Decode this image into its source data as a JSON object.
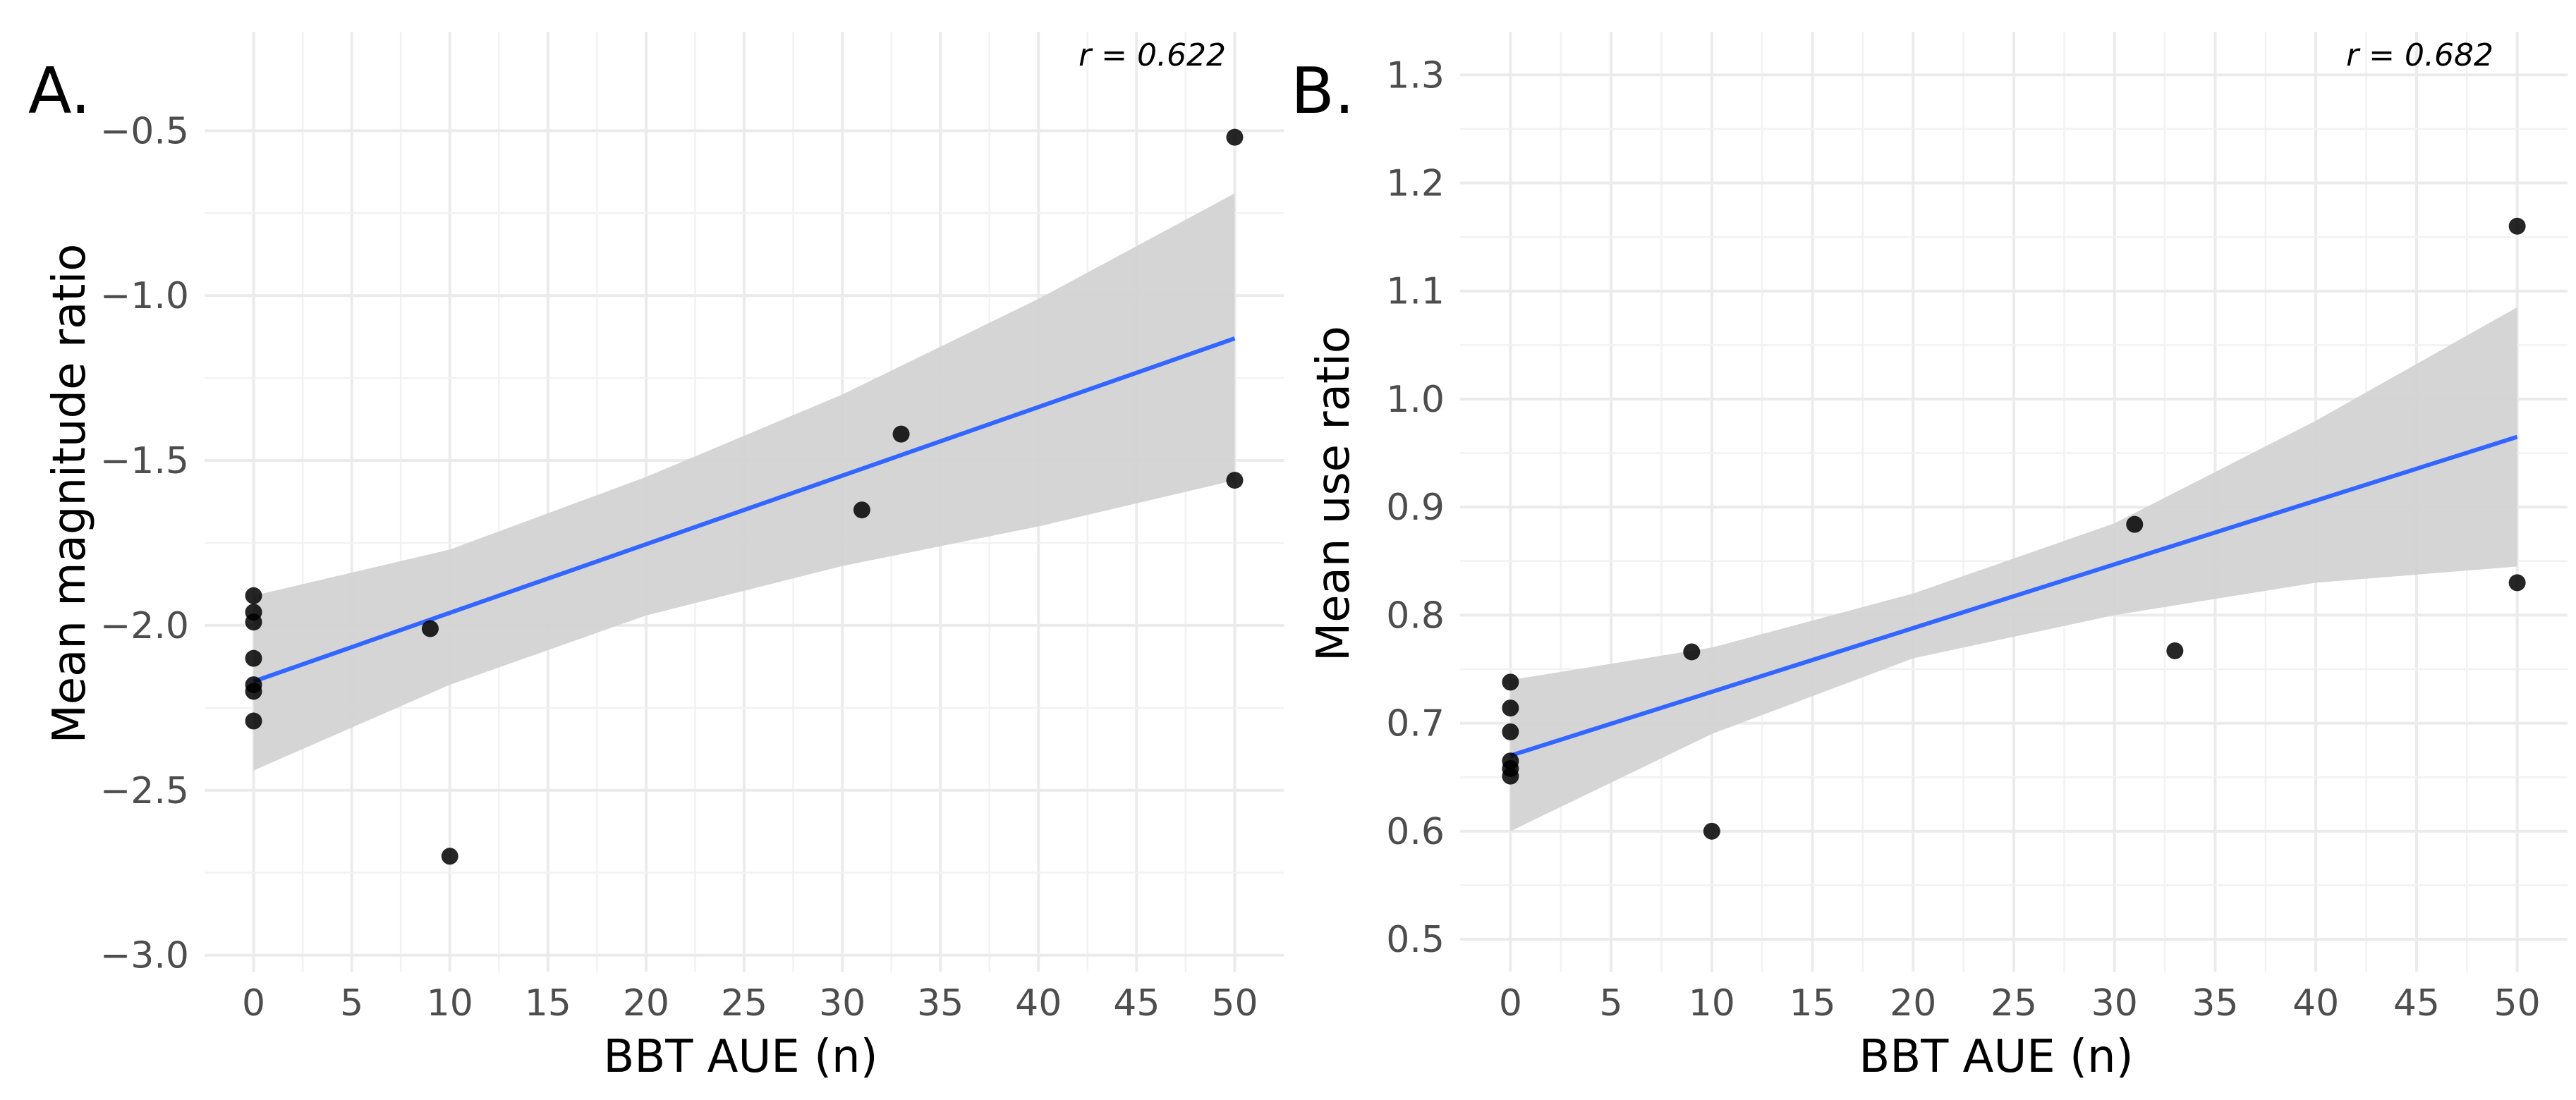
{
  "chart_data": [
    {
      "type": "scatter",
      "panel_label": "A.",
      "title": "",
      "xlabel": "BBT AUE (n)",
      "ylabel": "Mean magnitude ratio",
      "annotation": "r = 0.622",
      "xlim": [
        -2.5,
        52.5
      ],
      "ylim": [
        -3.05,
        -0.2
      ],
      "xticks": [
        0,
        5,
        10,
        15,
        20,
        25,
        30,
        35,
        40,
        45,
        50
      ],
      "xtick_labels": [
        "0",
        "5",
        "10",
        "15",
        "20",
        "25",
        "30",
        "35",
        "40",
        "45",
        "50"
      ],
      "yticks": [
        -3.0,
        -2.5,
        -2.0,
        -1.5,
        -1.0,
        -0.5
      ],
      "ytick_labels": [
        "−3.0",
        "−2.5",
        "−2.0",
        "−1.5",
        "−1.0",
        "−0.5"
      ],
      "grid": true,
      "points": [
        {
          "x": 0,
          "y": -1.91
        },
        {
          "x": 0,
          "y": -1.96
        },
        {
          "x": 0,
          "y": -1.99
        },
        {
          "x": 0,
          "y": -2.1
        },
        {
          "x": 0,
          "y": -2.18
        },
        {
          "x": 0,
          "y": -2.2
        },
        {
          "x": 0,
          "y": -2.29
        },
        {
          "x": 9,
          "y": -2.01
        },
        {
          "x": 10,
          "y": -2.7
        },
        {
          "x": 31,
          "y": -1.65
        },
        {
          "x": 33,
          "y": -1.42
        },
        {
          "x": 50,
          "y": -0.52
        },
        {
          "x": 50,
          "y": -1.56
        }
      ],
      "fit_line": {
        "x": [
          0,
          50
        ],
        "y": [
          -2.17,
          -1.13
        ],
        "color": "#3366FF"
      },
      "confidence_band": {
        "x": [
          0,
          10,
          20,
          30,
          40,
          50
        ],
        "upper": [
          -1.91,
          -1.77,
          -1.55,
          -1.3,
          -1.01,
          -0.69
        ],
        "lower": [
          -2.44,
          -2.18,
          -1.97,
          -1.82,
          -1.7,
          -1.56
        ],
        "color": "#d3d3d3"
      }
    },
    {
      "type": "scatter",
      "panel_label": "B.",
      "title": "",
      "xlabel": "BBT AUE (n)",
      "ylabel": "Mean use ratio",
      "annotation": "r = 0.682",
      "xlim": [
        -2.5,
        52.5
      ],
      "ylim": [
        0.47,
        1.34
      ],
      "xticks": [
        0,
        5,
        10,
        15,
        20,
        25,
        30,
        35,
        40,
        45,
        50
      ],
      "xtick_labels": [
        "0",
        "5",
        "10",
        "15",
        "20",
        "25",
        "30",
        "35",
        "40",
        "45",
        "50"
      ],
      "yticks": [
        0.5,
        0.6,
        0.7,
        0.8,
        0.9,
        1.0,
        1.1,
        1.2,
        1.3
      ],
      "ytick_labels": [
        "0.5",
        "0.6",
        "0.7",
        "0.8",
        "0.9",
        "1.0",
        "1.1",
        "1.2",
        "1.3"
      ],
      "grid": true,
      "points": [
        {
          "x": 0,
          "y": 0.738
        },
        {
          "x": 0,
          "y": 0.714
        },
        {
          "x": 0,
          "y": 0.692
        },
        {
          "x": 0,
          "y": 0.665
        },
        {
          "x": 0,
          "y": 0.658
        },
        {
          "x": 0,
          "y": 0.651
        },
        {
          "x": 9,
          "y": 0.766
        },
        {
          "x": 10,
          "y": 0.6
        },
        {
          "x": 31,
          "y": 0.884
        },
        {
          "x": 33,
          "y": 0.767
        },
        {
          "x": 50,
          "y": 1.16
        },
        {
          "x": 50,
          "y": 0.83
        }
      ],
      "fit_line": {
        "x": [
          0,
          50
        ],
        "y": [
          0.67,
          0.965
        ],
        "color": "#3366FF"
      },
      "confidence_band": {
        "x": [
          0,
          10,
          20,
          30,
          40,
          50
        ],
        "upper": [
          0.74,
          0.77,
          0.82,
          0.885,
          0.98,
          1.085
        ],
        "lower": [
          0.6,
          0.69,
          0.76,
          0.8,
          0.83,
          0.845
        ],
        "color": "#d3d3d3"
      }
    }
  ]
}
